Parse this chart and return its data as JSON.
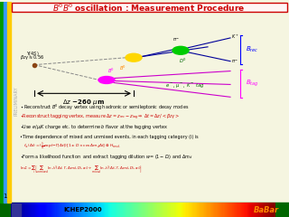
{
  "title": "$B^0\\overline{B}^0$ oscillation : Measurement Procedure",
  "title_color": "#cc0000",
  "bg_color": "#f5f5e0",
  "bottom_text": "ICHEP2000",
  "babar_text": "BaBar",
  "preliminary_text": "PRELIMINARY",
  "upsilon_label": "$\\Upsilon(4S)$",
  "beta_label": "$\\beta_Z\\gamma \\approx 0.56$",
  "deltaz_label": "$\\Delta z$ ~260 $\\mu$m",
  "etag_label": "$e^-$, $\\mu^-$, $K^-$ tag",
  "kplus_label": "$K^+$",
  "piminus_label": "$\\pi^-$",
  "piplus_label": "$\\pi^+$",
  "D0_label": "$D^0$",
  "B0_label": "$B^0$",
  "Bs_label": "$B^0$",
  "Brec_label": "$B_{rec}$",
  "Btag_label": "$B_{tag}$",
  "page_number": "1",
  "bullet1": "• Reconstruct $B^0$ decay vertex using hadronic or semileptonic decay modes",
  "bullet2": "•Reconstruct tagging vertex, measure $\\Delta z = z_{rec}-z_{tag}\\Rightarrow$ $\\Delta t = \\Delta z / <\\beta_Z\\gamma>$",
  "bullet3": "•Use $e/\\mu/K$ charge etc. to determine $b$ flavor at the tagging vertex",
  "bullet4": "•Time dependence of mixed and unmixed events, in each tagging category (i) is",
  "bullet5": "   $f_{\\pm}(\\Delta t) = (\\frac{1}{4}\\exp(-\\Gamma|\\Delta t|)[1 \\pm D \\times \\cos\\Delta m_d \\Delta t] \\otimes H_{resol.}$",
  "bullet6": "•Form a likelihood function  and extract tagging dilution $w = (1-D_i)$ and $\\Delta m_d$",
  "likelihood": "$\\ln\\mathcal{L} = \\sum_i\\left[\\sum_{unmixed}\\ln\\mathcal{N}_i(\\Delta t;\\Gamma,\\Delta m_d,D_i,a_i) + \\sum_{mixed}\\ln\\mathcal{N}_i(\\Delta t;\\Gamma,\\Delta m_d,D_i,a_i)\\right]$"
}
